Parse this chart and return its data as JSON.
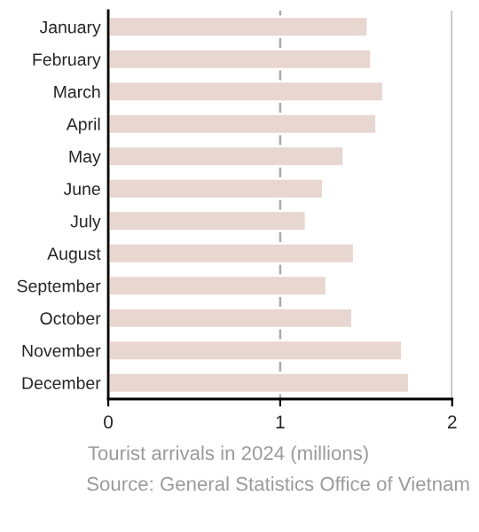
{
  "chart_data": {
    "type": "bar",
    "orientation": "horizontal",
    "categories": [
      "January",
      "February",
      "March",
      "April",
      "May",
      "June",
      "July",
      "August",
      "September",
      "October",
      "November",
      "December"
    ],
    "values": [
      1.51,
      1.53,
      1.6,
      1.56,
      1.37,
      1.25,
      1.15,
      1.43,
      1.27,
      1.42,
      1.71,
      1.75
    ],
    "color": "#e8d6d0",
    "xlabel": "Tourist arrivals in 2024 (millions)",
    "annotations": [
      "Source: General Statistics Office of Vietnam"
    ],
    "xlim": [
      0,
      2
    ],
    "xticks": [
      0,
      1,
      2
    ],
    "grid": "x"
  }
}
